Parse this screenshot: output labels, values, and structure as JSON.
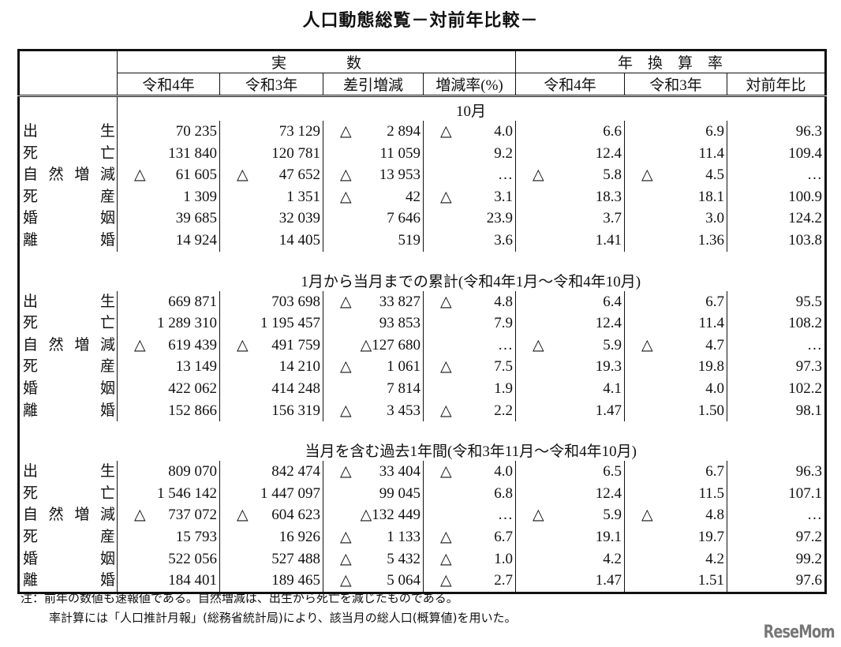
{
  "title": "人口動態総覧－対前年比較－",
  "header": {
    "group_actual": "実　　　　数",
    "group_rate": "年　換　算　率",
    "columns": [
      "令和4年",
      "令和3年",
      "差引増減",
      "増減率(%)",
      "令和4年",
      "令和3年",
      "対前年比"
    ]
  },
  "sections": [
    {
      "title": "10月",
      "rows": [
        {
          "label": "出生",
          "values": [
            "70 235",
            "73 129",
            "△ 2 894",
            "△ 4.0",
            "6.6",
            "6.9",
            "96.3"
          ]
        },
        {
          "label": "死亡",
          "values": [
            "131 840",
            "120 781",
            "11 059",
            "9.2",
            "12.4",
            "11.4",
            "109.4"
          ]
        },
        {
          "label": "自然増減",
          "values": [
            "△ 61 605",
            "△ 47 652",
            "△ 13 953",
            "…",
            "△ 5.8",
            "△ 4.5",
            "…"
          ]
        },
        {
          "label": "死産",
          "values": [
            "1 309",
            "1 351",
            "△ 42",
            "△ 3.1",
            "18.3",
            "18.1",
            "100.9"
          ]
        },
        {
          "label": "婚姻",
          "values": [
            "39 685",
            "32 039",
            "7 646",
            "23.9",
            "3.7",
            "3.0",
            "124.2"
          ]
        },
        {
          "label": "離婚",
          "values": [
            "14 924",
            "14 405",
            "519",
            "3.6",
            "1.41",
            "1.36",
            "103.8"
          ]
        }
      ]
    },
    {
      "title": "1月から当月までの累計(令和4年1月～令和4年10月)",
      "rows": [
        {
          "label": "出生",
          "values": [
            "669 871",
            "703 698",
            "△ 33 827",
            "△ 4.8",
            "6.4",
            "6.7",
            "95.5"
          ]
        },
        {
          "label": "死亡",
          "values": [
            "1 289 310",
            "1 195 457",
            "93 853",
            "7.9",
            "12.4",
            "11.4",
            "108.2"
          ]
        },
        {
          "label": "自然増減",
          "values": [
            "△ 619 439",
            "△ 491 759",
            "△127 680",
            "…",
            "△ 5.9",
            "△ 4.7",
            "…"
          ]
        },
        {
          "label": "死産",
          "values": [
            "13 149",
            "14 210",
            "△ 1 061",
            "△ 7.5",
            "19.3",
            "19.8",
            "97.3"
          ]
        },
        {
          "label": "婚姻",
          "values": [
            "422 062",
            "414 248",
            "7 814",
            "1.9",
            "4.1",
            "4.0",
            "102.2"
          ]
        },
        {
          "label": "離婚",
          "values": [
            "152 866",
            "156 319",
            "△ 3 453",
            "△ 2.2",
            "1.47",
            "1.50",
            "98.1"
          ]
        }
      ]
    },
    {
      "title": "当月を含む過去1年間(令和3年11月～令和4年10月)",
      "rows": [
        {
          "label": "出生",
          "values": [
            "809 070",
            "842 474",
            "△ 33 404",
            "△ 4.0",
            "6.5",
            "6.7",
            "96.3"
          ]
        },
        {
          "label": "死亡",
          "values": [
            "1 546 142",
            "1 447 097",
            "99 045",
            "6.8",
            "12.4",
            "11.5",
            "107.1"
          ]
        },
        {
          "label": "自然増減",
          "values": [
            "△ 737 072",
            "△ 604 623",
            "△132 449",
            "…",
            "△ 5.9",
            "△ 4.8",
            "…"
          ]
        },
        {
          "label": "死産",
          "values": [
            "15 793",
            "16 926",
            "△ 1 133",
            "△ 6.7",
            "19.1",
            "19.7",
            "97.2"
          ]
        },
        {
          "label": "婚姻",
          "values": [
            "522 056",
            "527 488",
            "△ 5 432",
            "△ 1.0",
            "4.2",
            "4.2",
            "99.2"
          ]
        },
        {
          "label": "離婚",
          "values": [
            "184 401",
            "189 465",
            "△ 5 064",
            "△ 2.7",
            "1.47",
            "1.51",
            "97.6"
          ]
        }
      ]
    }
  ],
  "notes": [
    "注：前年の数値も速報値である。自然増減は、出生から死亡を減じたものである。",
    "率計算には「人口推計月報」(総務省統計局)により、該当月の総人口(概算値)を用いた。"
  ],
  "logo": "ReseMom"
}
